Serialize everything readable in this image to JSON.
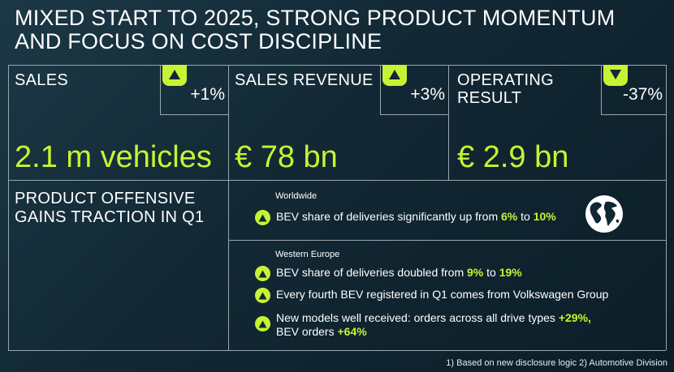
{
  "header": {
    "title_line1": "MIXED START TO 2025, STRONG PRODUCT MOMENTUM",
    "title_line2": "AND FOCUS ON COST DISCIPLINE"
  },
  "kpis": [
    {
      "label": "SALES",
      "delta": "+1%",
      "direction": "up",
      "value": "2.1 m vehicles"
    },
    {
      "label": "SALES REVENUE",
      "delta": "+3%",
      "direction": "up",
      "value": "€ 78 bn"
    },
    {
      "label_line1": "OPERATING",
      "label_line2": "RESULT",
      "delta": "-37%",
      "direction": "down",
      "value": "€ 2.9 bn"
    }
  ],
  "product": {
    "title_line1": "PRODUCT OFFENSIVE",
    "title_line2": "GAINS TRACTION IN Q1",
    "worldwide": {
      "region": "Worldwide",
      "icon": "globe-icon",
      "bullets": [
        {
          "pre": "BEV share of deliveries significantly up from ",
          "h1": "6%",
          "mid": " to ",
          "h2": "10%"
        }
      ]
    },
    "western_europe": {
      "region": "Western Europe",
      "bullets": [
        {
          "pre": "BEV share of deliveries doubled from ",
          "h1": "9%",
          "mid": " to ",
          "h2": "19%"
        },
        {
          "text": "Every fourth BEV registered in Q1 comes from Volkswagen Group"
        },
        {
          "pre": "New models well received: orders across all drive types ",
          "h1": "+29%,",
          "line2": "BEV orders ",
          "h2": "+64%"
        }
      ]
    }
  },
  "footnote": "1)  Based on new disclosure logic  2) Automotive Division",
  "colors": {
    "accent": "#c6f432",
    "background": "#122834",
    "divider": "#9aa7ae"
  }
}
